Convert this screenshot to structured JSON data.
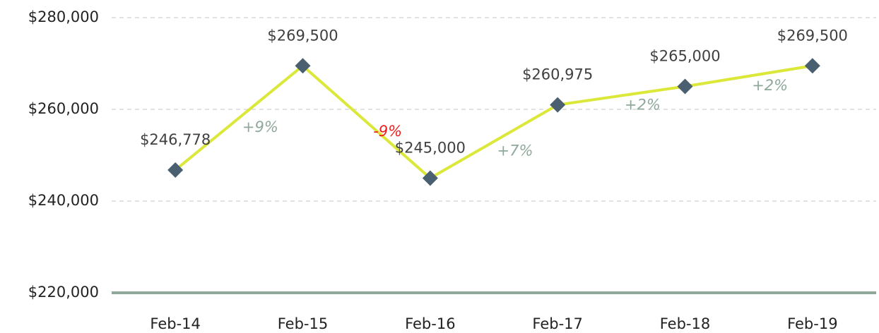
{
  "chart_data": {
    "type": "line",
    "categories": [
      "Feb-14",
      "Feb-15",
      "Feb-16",
      "Feb-17",
      "Feb-18",
      "Feb-19"
    ],
    "values": [
      246778,
      269500,
      245000,
      260975,
      265000,
      269500
    ],
    "value_labels": [
      "$246,778",
      "$269,500",
      "$245,000",
      "$260,975",
      "$265,000",
      "$269,500"
    ],
    "color": "#dbe83a",
    "marker_color": "#4a6070",
    "ylim": [
      220000,
      280000
    ],
    "yticks": [
      {
        "value": 220000,
        "label": "$220,000"
      },
      {
        "value": 240000,
        "label": "$240,000"
      },
      {
        "value": 260000,
        "label": "$260,000"
      },
      {
        "value": 280000,
        "label": "$280,000"
      }
    ],
    "grid": true,
    "annotations": [
      {
        "text": "+9%",
        "color": "#8fa89a"
      },
      {
        "text": "-9%",
        "color": "#ee1c1c"
      },
      {
        "text": "+7%",
        "color": "#8fa89a"
      },
      {
        "text": "+2%",
        "color": "#8fa89a"
      },
      {
        "text": "+2%",
        "color": "#8fa89a"
      }
    ]
  }
}
